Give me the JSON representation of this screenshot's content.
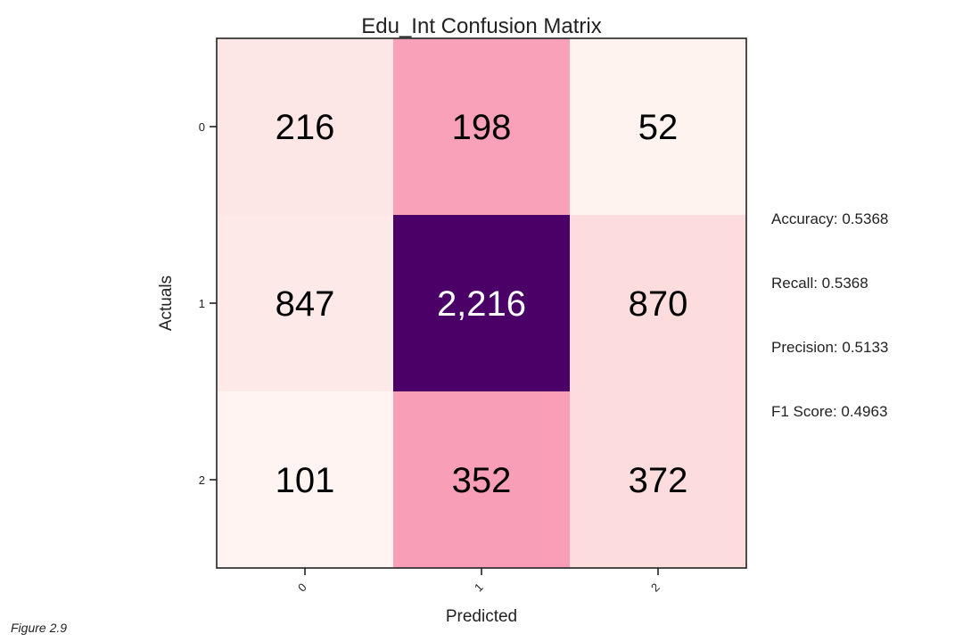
{
  "chart_data": {
    "type": "heatmap",
    "title": "Edu_Int Confusion Matrix",
    "xlabel": "Predicted",
    "ylabel": "Actuals",
    "x_categories": [
      "0",
      "1",
      "2"
    ],
    "y_categories": [
      "0",
      "1",
      "2"
    ],
    "values": [
      [
        216,
        198,
        52
      ],
      [
        847,
        2216,
        870
      ],
      [
        101,
        352,
        372
      ]
    ],
    "value_labels": [
      [
        "216",
        "198",
        "52"
      ],
      [
        "847",
        "2,216",
        "870"
      ],
      [
        "101",
        "352",
        "372"
      ]
    ],
    "colormap": "RdPu",
    "cell_colors": [
      [
        "#fde7e6",
        "#f8a1b8",
        "#fff3f0"
      ],
      [
        "#fde9e8",
        "#4a0066",
        "#fcdcdc"
      ],
      [
        "#fff4f1",
        "#f89eb6",
        "#fcdcdc"
      ]
    ],
    "text_colors": [
      [
        "#000000",
        "#000000",
        "#000000"
      ],
      [
        "#000000",
        "#ffffff",
        "#000000"
      ],
      [
        "#000000",
        "#000000",
        "#000000"
      ]
    ],
    "grid": false,
    "legend": "none"
  },
  "metrics": {
    "accuracy": "Accuracy: 0.5368",
    "recall": "Recall: 0.5368",
    "precision": "Precision: 0.5133",
    "f1": "F1 Score: 0.4963"
  },
  "caption": "Figure 2.9"
}
